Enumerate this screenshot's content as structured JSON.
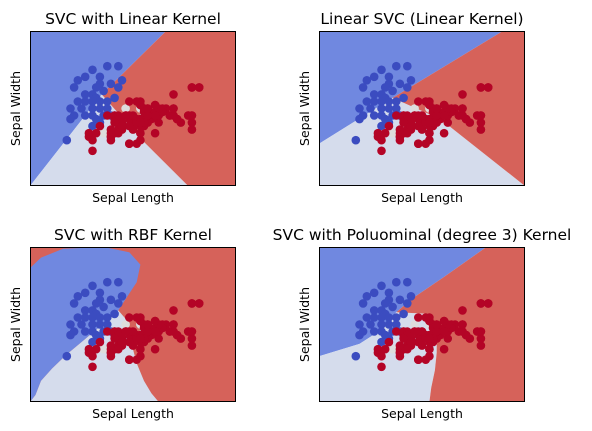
{
  "chart_data": [
    {
      "type": "scatter",
      "title": "SVC with Linear Kernel",
      "xlabel": "Sepal Length",
      "ylabel": "Sepal Width",
      "xlim": [
        3.3,
        8.9
      ],
      "ylim": [
        1.0,
        5.4
      ],
      "xticks": [],
      "yticks": [],
      "grid": false,
      "classes": [
        {
          "id": 0,
          "region_color": "#7088e0",
          "point_color": "#3b4cc0"
        },
        {
          "id": 1,
          "region_color": "#d5dcec",
          "point_color": "#dddcdc"
        },
        {
          "id": 2,
          "region_color": "#d6625a",
          "point_color": "#b40426"
        }
      ],
      "regions": [
        {
          "class": 0,
          "polygon": [
            [
              3.3,
              5.4
            ],
            [
              7.0,
              5.4
            ],
            [
              5.25,
              3.6
            ],
            [
              3.3,
              1.0
            ]
          ]
        },
        {
          "class": 1,
          "polygon": [
            [
              3.3,
              1.0
            ],
            [
              5.25,
              3.6
            ],
            [
              6.3,
              2.35
            ],
            [
              7.6,
              1.0
            ]
          ]
        },
        {
          "class": 2,
          "polygon": [
            [
              7.0,
              5.4
            ],
            [
              8.9,
              5.4
            ],
            [
              8.9,
              1.0
            ],
            [
              7.6,
              1.0
            ],
            [
              6.3,
              2.35
            ],
            [
              5.25,
              3.6
            ]
          ]
        }
      ]
    },
    {
      "type": "scatter",
      "title": "Linear SVC (Linear Kernel)",
      "xlabel": "Sepal Length",
      "ylabel": "Sepal Width",
      "xlim": [
        3.3,
        8.9
      ],
      "ylim": [
        1.0,
        5.4
      ],
      "xticks": [],
      "yticks": [],
      "grid": false,
      "classes": [
        {
          "id": 0,
          "region_color": "#7088e0",
          "point_color": "#3b4cc0"
        },
        {
          "id": 1,
          "region_color": "#d5dcec",
          "point_color": "#dddcdc"
        },
        {
          "id": 2,
          "region_color": "#d6625a",
          "point_color": "#b40426"
        }
      ],
      "regions": [
        {
          "class": 0,
          "polygon": [
            [
              3.3,
              5.4
            ],
            [
              8.3,
              5.4
            ],
            [
              5.3,
              3.5
            ],
            [
              3.3,
              2.2
            ]
          ]
        },
        {
          "class": 1,
          "polygon": [
            [
              3.3,
              2.2
            ],
            [
              5.3,
              3.5
            ],
            [
              6.6,
              2.9
            ],
            [
              8.9,
              1.0
            ],
            [
              3.3,
              1.0
            ]
          ]
        },
        {
          "class": 2,
          "polygon": [
            [
              8.3,
              5.4
            ],
            [
              8.9,
              5.4
            ],
            [
              8.9,
              1.0
            ],
            [
              6.6,
              2.9
            ],
            [
              5.3,
              3.5
            ]
          ]
        }
      ]
    },
    {
      "type": "scatter",
      "title": "SVC with RBF Kernel",
      "xlabel": "Sepal Length",
      "ylabel": "Sepal Width",
      "xlim": [
        3.3,
        8.9
      ],
      "ylim": [
        1.0,
        5.4
      ],
      "xticks": [],
      "yticks": [],
      "grid": false,
      "classes": [
        {
          "id": 0,
          "region_color": "#7088e0",
          "point_color": "#3b4cc0"
        },
        {
          "id": 1,
          "region_color": "#d5dcec",
          "point_color": "#dddcdc"
        },
        {
          "id": 2,
          "region_color": "#d6625a",
          "point_color": "#b40426"
        }
      ],
      "regions": [
        {
          "class": 2,
          "polygon": [
            [
              3.3,
              5.4
            ],
            [
              8.9,
              5.4
            ],
            [
              8.9,
              1.0
            ],
            [
              3.3,
              1.0
            ]
          ]
        },
        {
          "class": 0,
          "polygon": [
            [
              3.3,
              4.8
            ],
            [
              3.6,
              5.1
            ],
            [
              4.2,
              5.35
            ],
            [
              5.3,
              5.4
            ],
            [
              6.0,
              5.25
            ],
            [
              6.3,
              4.9
            ],
            [
              6.2,
              4.4
            ],
            [
              5.95,
              4.0
            ],
            [
              5.7,
              3.6
            ],
            [
              5.4,
              3.3
            ],
            [
              5.1,
              3.05
            ],
            [
              4.7,
              2.7
            ],
            [
              4.3,
              2.35
            ],
            [
              3.9,
              1.95
            ],
            [
              3.6,
              1.6
            ],
            [
              3.45,
              1.2
            ],
            [
              3.3,
              1.0
            ]
          ]
        },
        {
          "class": 1,
          "polygon": [
            [
              3.3,
              1.0
            ],
            [
              3.45,
              1.2
            ],
            [
              3.6,
              1.6
            ],
            [
              3.9,
              1.95
            ],
            [
              4.3,
              2.35
            ],
            [
              4.7,
              2.7
            ],
            [
              5.1,
              3.05
            ],
            [
              5.4,
              3.3
            ],
            [
              5.7,
              3.6
            ],
            [
              5.95,
              3.3
            ],
            [
              6.05,
              2.9
            ],
            [
              6.1,
              2.5
            ],
            [
              6.2,
              2.1
            ],
            [
              6.4,
              1.6
            ],
            [
              6.6,
              1.25
            ],
            [
              6.8,
              1.0
            ]
          ]
        }
      ]
    },
    {
      "type": "scatter",
      "title": "SVC with Poluominal (degree 3) Kernel",
      "xlabel": "Sepal Length",
      "ylabel": "Sepal Width",
      "xlim": [
        3.3,
        8.9
      ],
      "ylim": [
        1.0,
        5.4
      ],
      "xticks": [],
      "yticks": [],
      "grid": false,
      "classes": [
        {
          "id": 0,
          "region_color": "#7088e0",
          "point_color": "#3b4cc0"
        },
        {
          "id": 1,
          "region_color": "#d5dcec",
          "point_color": "#dddcdc"
        },
        {
          "id": 2,
          "region_color": "#d6625a",
          "point_color": "#b40426"
        }
      ],
      "regions": [
        {
          "class": 0,
          "polygon": [
            [
              3.3,
              5.4
            ],
            [
              7.85,
              5.4
            ],
            [
              6.7,
              4.55
            ],
            [
              5.85,
              3.95
            ],
            [
              5.4,
              3.55
            ],
            [
              5.0,
              3.05
            ],
            [
              4.4,
              2.65
            ],
            [
              3.3,
              2.3
            ]
          ]
        },
        {
          "class": 1,
          "polygon": [
            [
              3.3,
              2.3
            ],
            [
              4.4,
              2.65
            ],
            [
              5.0,
              3.05
            ],
            [
              5.4,
              3.55
            ],
            [
              6.3,
              3.5
            ],
            [
              6.5,
              3.0
            ],
            [
              6.5,
              2.4
            ],
            [
              6.45,
              1.9
            ],
            [
              6.35,
              1.4
            ],
            [
              6.3,
              1.0
            ],
            [
              3.3,
              1.0
            ]
          ]
        },
        {
          "class": 2,
          "polygon": [
            [
              7.85,
              5.4
            ],
            [
              8.9,
              5.4
            ],
            [
              8.9,
              1.0
            ],
            [
              6.3,
              1.0
            ],
            [
              6.35,
              1.4
            ],
            [
              6.45,
              1.9
            ],
            [
              6.5,
              2.4
            ],
            [
              6.5,
              3.0
            ],
            [
              6.3,
              3.5
            ],
            [
              5.4,
              3.55
            ],
            [
              5.85,
              3.95
            ],
            [
              6.7,
              4.55
            ]
          ]
        }
      ]
    }
  ],
  "points": [
    [
      4.5,
      3.8,
      0
    ],
    [
      4.6,
      4.0,
      0
    ],
    [
      4.8,
      4.1,
      0
    ],
    [
      5.0,
      4.3,
      0
    ],
    [
      5.2,
      4.1,
      0
    ],
    [
      5.4,
      4.4,
      0
    ],
    [
      5.7,
      4.4,
      0
    ],
    [
      5.2,
      3.9,
      0
    ],
    [
      5.5,
      3.9,
      0
    ],
    [
      5.8,
      4.0,
      0
    ],
    [
      4.8,
      3.6,
      0
    ],
    [
      5.0,
      3.6,
      0
    ],
    [
      5.3,
      3.7,
      0
    ],
    [
      5.1,
      3.5,
      0
    ],
    [
      5.4,
      3.4,
      0
    ],
    [
      5.6,
      3.5,
      0
    ],
    [
      4.6,
      3.4,
      0
    ],
    [
      4.8,
      3.4,
      0
    ],
    [
      5.0,
      3.4,
      0
    ],
    [
      5.2,
      3.4,
      0
    ],
    [
      4.4,
      3.2,
      0
    ],
    [
      4.7,
      3.2,
      0
    ],
    [
      5.0,
      3.2,
      0
    ],
    [
      5.2,
      3.2,
      0
    ],
    [
      5.4,
      3.2,
      0
    ],
    [
      4.5,
      3.0,
      0
    ],
    [
      4.8,
      3.0,
      0
    ],
    [
      5.0,
      3.0,
      0
    ],
    [
      5.3,
      3.0,
      0
    ],
    [
      5.5,
      3.0,
      0
    ],
    [
      5.1,
      2.9,
      0
    ],
    [
      4.4,
      2.9,
      0
    ],
    [
      5.0,
      2.7,
      0
    ],
    [
      5.1,
      3.8,
      0
    ],
    [
      5.7,
      3.8,
      0
    ],
    [
      4.3,
      2.3,
      0
    ],
    [
      5.2,
      2.8,
      0
    ],
    [
      5.8,
      2.7,
      1
    ],
    [
      6.0,
      2.2,
      1
    ],
    [
      6.2,
      2.2,
      1
    ],
    [
      5.9,
      3.0,
      1
    ],
    [
      6.0,
      2.9,
      1
    ],
    [
      6.1,
      2.8,
      1
    ],
    [
      6.3,
      2.5,
      1
    ],
    [
      6.4,
      3.0,
      1
    ],
    [
      6.6,
      3.0,
      1
    ],
    [
      6.8,
      2.8,
      1
    ],
    [
      6.9,
      3.1,
      1
    ],
    [
      5.6,
      2.5,
      1
    ],
    [
      5.5,
      2.4,
      1
    ],
    [
      5.7,
      2.8,
      1
    ],
    [
      5.6,
      3.0,
      1
    ],
    [
      6.3,
      3.2,
      1
    ],
    [
      5.3,
      2.5,
      1
    ],
    [
      5.1,
      2.5,
      1
    ],
    [
      5.9,
      3.2,
      1
    ],
    [
      6.1,
      3.0,
      1
    ],
    [
      6.7,
      3.1,
      1
    ],
    [
      5.0,
      2.3,
      1
    ],
    [
      5.7,
      2.6,
      1
    ],
    [
      6.4,
      2.8,
      1
    ],
    [
      6.3,
      2.8,
      1
    ],
    [
      7.0,
      3.2,
      2
    ],
    [
      6.4,
      3.2,
      2
    ],
    [
      6.9,
      3.1,
      2
    ],
    [
      5.5,
      2.3,
      2
    ],
    [
      6.5,
      2.8,
      2
    ],
    [
      5.7,
      2.8,
      2
    ],
    [
      6.3,
      3.3,
      2
    ],
    [
      4.9,
      2.4,
      2
    ],
    [
      6.6,
      2.9,
      2
    ],
    [
      5.2,
      2.7,
      2
    ],
    [
      5.0,
      2.0,
      2
    ],
    [
      5.9,
      3.0,
      2
    ],
    [
      6.0,
      2.2,
      2
    ],
    [
      6.1,
      2.9,
      2
    ],
    [
      5.6,
      2.9,
      2
    ],
    [
      6.7,
      3.1,
      2
    ],
    [
      5.6,
      3.0,
      2
    ],
    [
      5.8,
      2.7,
      2
    ],
    [
      6.2,
      2.2,
      2
    ],
    [
      5.6,
      2.5,
      2
    ],
    [
      6.1,
      2.8,
      2
    ],
    [
      6.3,
      2.5,
      2
    ],
    [
      6.4,
      2.9,
      2
    ],
    [
      6.6,
      3.0,
      2
    ],
    [
      6.8,
      2.8,
      2
    ],
    [
      6.7,
      3.0,
      2
    ],
    [
      6.0,
      2.9,
      2
    ],
    [
      5.7,
      2.6,
      2
    ],
    [
      5.5,
      2.4,
      2
    ],
    [
      5.5,
      2.4,
      2
    ],
    [
      6.0,
      2.7,
      2
    ],
    [
      5.4,
      3.0,
      2
    ],
    [
      6.0,
      3.4,
      2
    ],
    [
      6.7,
      3.1,
      2
    ],
    [
      6.3,
      2.3,
      2
    ],
    [
      5.6,
      3.0,
      2
    ],
    [
      5.5,
      2.5,
      2
    ],
    [
      5.5,
      2.6,
      2
    ],
    [
      6.1,
      3.0,
      2
    ],
    [
      5.8,
      2.6,
      2
    ],
    [
      5.0,
      2.3,
      2
    ],
    [
      5.7,
      3.0,
      2
    ],
    [
      5.7,
      2.9,
      2
    ],
    [
      6.2,
      2.9,
      2
    ],
    [
      5.1,
      2.5,
      2
    ],
    [
      6.3,
      3.3,
      2
    ],
    [
      5.8,
      2.7,
      2
    ],
    [
      7.1,
      3.0,
      2
    ],
    [
      6.3,
      2.9,
      2
    ],
    [
      6.5,
      3.0,
      2
    ],
    [
      7.6,
      3.0,
      2
    ],
    [
      4.9,
      2.5,
      2
    ],
    [
      7.3,
      2.9,
      2
    ],
    [
      6.7,
      2.5,
      2
    ],
    [
      7.2,
      3.6,
      2
    ],
    [
      6.5,
      3.2,
      2
    ],
    [
      6.4,
      2.7,
      2
    ],
    [
      6.8,
      3.0,
      2
    ],
    [
      5.7,
      2.5,
      2
    ],
    [
      5.8,
      2.8,
      2
    ],
    [
      6.4,
      3.2,
      2
    ],
    [
      6.5,
      3.0,
      2
    ],
    [
      7.7,
      3.8,
      2
    ],
    [
      7.7,
      2.6,
      2
    ],
    [
      6.0,
      2.2,
      2
    ],
    [
      6.9,
      3.2,
      2
    ],
    [
      5.6,
      2.8,
      2
    ],
    [
      7.7,
      2.8,
      2
    ],
    [
      6.3,
      2.7,
      2
    ],
    [
      6.7,
      3.3,
      2
    ],
    [
      7.2,
      3.2,
      2
    ],
    [
      6.2,
      2.8,
      2
    ],
    [
      6.1,
      3.0,
      2
    ],
    [
      6.4,
      2.8,
      2
    ],
    [
      7.2,
      3.0,
      2
    ],
    [
      7.4,
      2.8,
      2
    ],
    [
      7.9,
      3.8,
      2
    ],
    [
      6.4,
      2.8,
      2
    ],
    [
      6.3,
      2.8,
      2
    ],
    [
      6.1,
      2.6,
      2
    ],
    [
      7.7,
      3.0,
      2
    ],
    [
      6.3,
      3.4,
      2
    ],
    [
      6.4,
      3.1,
      2
    ],
    [
      6.0,
      3.0,
      2
    ],
    [
      6.9,
      3.1,
      2
    ],
    [
      6.7,
      3.1,
      2
    ],
    [
      6.9,
      3.1,
      2
    ],
    [
      5.8,
      2.7,
      2
    ],
    [
      6.8,
      3.2,
      2
    ],
    [
      6.7,
      3.3,
      2
    ],
    [
      6.7,
      3.0,
      2
    ],
    [
      6.3,
      2.5,
      2
    ],
    [
      6.5,
      3.0,
      2
    ],
    [
      6.2,
      3.4,
      2
    ],
    [
      5.9,
      3.0,
      2
    ],
    [
      7.6,
      3.0,
      2
    ],
    [
      7.3,
      2.9,
      2
    ],
    [
      7.2,
      3.0,
      2
    ],
    [
      7.1,
      3.0,
      2
    ],
    [
      6.5,
      3.2,
      2
    ],
    [
      7.7,
      3.8,
      2
    ],
    [
      7.9,
      3.8,
      2
    ],
    [
      7.7,
      3.0,
      2
    ],
    [
      7.2,
      3.2,
      2
    ]
  ]
}
